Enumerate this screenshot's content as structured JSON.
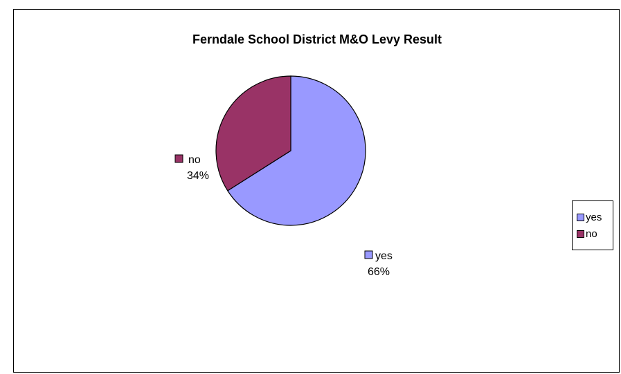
{
  "chart_data": {
    "type": "pie",
    "title": "Ferndale School District M&O Levy Result",
    "slices": [
      {
        "label": "yes",
        "value": 66,
        "percent_label": "66%",
        "color": "#9999ff"
      },
      {
        "label": "no",
        "value": 34,
        "percent_label": "34%",
        "color": "#993366"
      }
    ],
    "legend": {
      "placement": "right",
      "entries": [
        "yes",
        "no"
      ]
    }
  }
}
